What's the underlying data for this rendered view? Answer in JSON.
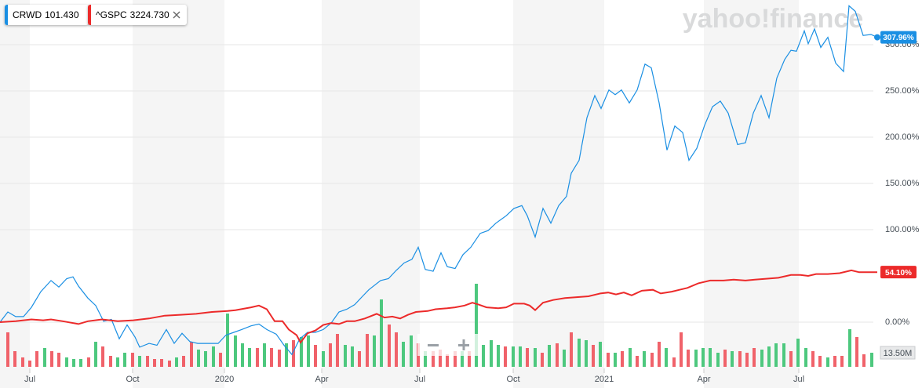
{
  "chart_data": {
    "type": "line",
    "watermark": "yahoo!finance",
    "xlim": [
      0,
      112
    ],
    "xticks": [
      {
        "value": 3.8,
        "label": "Jul"
      },
      {
        "value": 16.9,
        "label": "Oct"
      },
      {
        "value": 28.6,
        "label": "2020"
      },
      {
        "value": 41.0,
        "label": "Apr"
      },
      {
        "value": 53.5,
        "label": "Jul"
      },
      {
        "value": 65.4,
        "label": "Oct"
      },
      {
        "value": 77.0,
        "label": "2021"
      },
      {
        "value": 89.7,
        "label": "Apr"
      },
      {
        "value": 101.8,
        "label": "Jul"
      }
    ],
    "ylim": [
      -48.3,
      348.3
    ],
    "yticks": [
      {
        "value": 0,
        "label": "0.00%"
      },
      {
        "value": 100,
        "label": "100.00%"
      },
      {
        "value": 150,
        "label": "150.00%"
      },
      {
        "value": 200,
        "label": "200.00%"
      },
      {
        "value": 250,
        "label": "250.00%"
      },
      {
        "value": 300,
        "label": "300.00%"
      }
    ],
    "y2lim": [
      0,
      84
    ],
    "y2ticks": [
      {
        "value": 13.5,
        "label": "13.50M"
      }
    ],
    "grid": true,
    "series": [
      {
        "name": "CRWD",
        "quote": "101.430",
        "color": "#1a8fe3",
        "last_value": 307.96,
        "last_label": "307.96%",
        "x": [
          0,
          1,
          2,
          3,
          4,
          5.2,
          6.5,
          7.5,
          8.5,
          9.3,
          10,
          11.2,
          12.2,
          13.2,
          14.2,
          15.2,
          16.2,
          17.2,
          17.8,
          19,
          20,
          21.2,
          22.2,
          23.2,
          24.2,
          25.2,
          26.5,
          27.8,
          28.8,
          29.8,
          30.8,
          32,
          33,
          34,
          35.2,
          36.2,
          37.2,
          38.2,
          39.2,
          40.2,
          41.2,
          42.2,
          43.2,
          44.2,
          45.2,
          46.2,
          47,
          48.5,
          49.5,
          50.5,
          51.5,
          52.5,
          53.3,
          54.2,
          55.2,
          56.2,
          57,
          58,
          59,
          60,
          61.2,
          62.2,
          63.2,
          64.5,
          65.5,
          66.5,
          67.2,
          68.2,
          69.2,
          70.2,
          71.2,
          72.2,
          72.8,
          73.8,
          74.8,
          75.8,
          76.6,
          77.6,
          78.4,
          79.2,
          80.2,
          81.2,
          82.2,
          83,
          84,
          85,
          86,
          87,
          87.8,
          88.8,
          89.8,
          90.8,
          91.8,
          92.8,
          94,
          95,
          96,
          97,
          98,
          99,
          100,
          100.8,
          101.5,
          102.5,
          103,
          103.8,
          104.6,
          105.5,
          106.5,
          107.5,
          108.2,
          109,
          110,
          111,
          111.8
        ],
        "values": [
          0,
          11,
          6,
          6,
          16,
          33,
          45,
          38,
          47,
          49,
          39,
          26,
          18,
          1,
          3,
          -18,
          -3,
          -16,
          -27,
          -23,
          -25,
          -8,
          -23,
          -12,
          -21,
          -23,
          -23,
          -23,
          -14,
          -11,
          -8,
          -4,
          -2,
          -8,
          -13,
          -25,
          -35,
          -18,
          -11,
          -11,
          -8,
          -1,
          11,
          14,
          19,
          28,
          35,
          45,
          47,
          56,
          64,
          68,
          81,
          57,
          55,
          75,
          60,
          58,
          73,
          81,
          96,
          99,
          107,
          115,
          123,
          126,
          115,
          92,
          123,
          107,
          126,
          136,
          161,
          175,
          221,
          245,
          231,
          251,
          246,
          251,
          237,
          251,
          279,
          275,
          237,
          186,
          212,
          205,
          175,
          188,
          213,
          233,
          239,
          226,
          192,
          194,
          226,
          245,
          221,
          264,
          284,
          294,
          293,
          315,
          301,
          317,
          297,
          308,
          280,
          271,
          342,
          336,
          310,
          311,
          307.96
        ]
      },
      {
        "name": "^GSPC",
        "quote": "3224.730",
        "color": "#ec2a2a",
        "last_value": 54.1,
        "last_label": "54.10%",
        "x": [
          0,
          2,
          4,
          5.5,
          6.5,
          8,
          10,
          11.2,
          13,
          15,
          17,
          19,
          21,
          23,
          25,
          27,
          29,
          30,
          32,
          33,
          34,
          35,
          36,
          36.8,
          37.8,
          38.3,
          39.2,
          40.2,
          41.2,
          42.2,
          43.2,
          44.2,
          45.2,
          46.5,
          48,
          49,
          50,
          51,
          52,
          53,
          54.5,
          55.5,
          57,
          58,
          59.2,
          60.2,
          61,
          62,
          63.5,
          64.5,
          65.5,
          66.8,
          67.5,
          68.2,
          69.2,
          70.5,
          72,
          73.5,
          75,
          76.5,
          77.5,
          78.5,
          79.5,
          80.5,
          81.8,
          83.2,
          84.2,
          85.6,
          86.6,
          87.6,
          89,
          90.5,
          92.2,
          93.5,
          95,
          96.2,
          97.8,
          99.2,
          100.8,
          102,
          103,
          104,
          105.5,
          107,
          108.5,
          109.5,
          110.5,
          111.8
        ],
        "values": [
          0,
          1,
          3,
          2,
          3,
          1,
          -2,
          1,
          3,
          1,
          2,
          4,
          7,
          8,
          9,
          11,
          12,
          13,
          16,
          18,
          14,
          1,
          1,
          -8,
          -14,
          -22,
          -12,
          -9,
          -3,
          -1,
          -2,
          1,
          1,
          4,
          9,
          5,
          6,
          4,
          8,
          11,
          12,
          14,
          15,
          16,
          18,
          21,
          19,
          16,
          15,
          16,
          20,
          20,
          18,
          13,
          21,
          24,
          26,
          27,
          28,
          31,
          32,
          30,
          32,
          29,
          34,
          35,
          31,
          33,
          35,
          37,
          42,
          45,
          45,
          46,
          45,
          46,
          47,
          48,
          51,
          51,
          50,
          52,
          52,
          53,
          56,
          54,
          54,
          54.1
        ]
      },
      {
        "name": "Volume",
        "axis": "y2",
        "x": [
          1,
          1.9,
          2.9,
          3.8,
          4.7,
          5.7,
          6.6,
          7.5,
          8.5,
          9.4,
          10.3,
          11.3,
          12.2,
          13.1,
          14.1,
          15,
          15.9,
          16.9,
          17.8,
          18.8,
          19.7,
          20.6,
          21.6,
          22.5,
          23.4,
          24.4,
          25.3,
          26.2,
          27.2,
          28.1,
          29,
          30,
          30.9,
          31.8,
          32.8,
          33.7,
          34.6,
          35.6,
          36.5,
          37.4,
          38.4,
          39.3,
          40.2,
          41.2,
          42.1,
          43,
          44,
          44.9,
          45.8,
          46.8,
          47.7,
          48.6,
          49.6,
          50.5,
          51.4,
          52.4,
          53.3,
          54.2,
          55.2,
          56.1,
          57,
          58,
          58.9,
          59.8,
          60.7,
          61.6,
          62.6,
          63.5,
          64.4,
          65.4,
          66.3,
          67.2,
          68.2,
          69.1,
          70,
          71,
          71.9,
          72.8,
          73.8,
          74.7,
          75.6,
          76.5,
          77.5,
          78.4,
          79.3,
          80.3,
          81.2,
          82.1,
          83.1,
          84,
          84.9,
          85.9,
          86.8,
          87.7,
          88.7,
          89.6,
          90.5,
          91.5,
          92.4,
          93.3,
          94.3,
          95.2,
          96.1,
          97.1,
          98,
          98.9,
          99.9,
          100.8,
          101.7,
          102.7,
          103.6,
          104.5,
          105.5,
          106.4,
          107.3,
          108.3,
          109.2,
          110.1,
          111.1
        ],
        "values": [
          33,
          15,
          9,
          6,
          15,
          18,
          15,
          13.5,
          9,
          7.5,
          7.5,
          9,
          24,
          19.5,
          10.5,
          9,
          13.5,
          13.5,
          10.5,
          10.5,
          7.5,
          7.5,
          6,
          9,
          10.5,
          24,
          16.5,
          15,
          19.5,
          13.5,
          51,
          30,
          22.5,
          18,
          18,
          22.5,
          18,
          16.5,
          22.5,
          25.5,
          28.5,
          30,
          21,
          15,
          22.5,
          31.5,
          21,
          19.5,
          15,
          31.5,
          30,
          64.5,
          40.5,
          33,
          24,
          30,
          22.5,
          15,
          15,
          16.5,
          12,
          15,
          15,
          15,
          79.5,
          21,
          25.5,
          21,
          19.5,
          19.5,
          19.5,
          18,
          18,
          13.5,
          21,
          22.5,
          16.5,
          33,
          27,
          25.5,
          21,
          24,
          13.5,
          13.5,
          15,
          18,
          10.5,
          15,
          13.5,
          24,
          18,
          9,
          33,
          16.5,
          16.5,
          18,
          18,
          13.5,
          16.5,
          15,
          15,
          13.5,
          18,
          16.5,
          19.5,
          22.5,
          22.5,
          15,
          27,
          18,
          15,
          10.5,
          9,
          10.5,
          10.5,
          36,
          28.5,
          12,
          13.5
        ],
        "colors": [
          "#f0626a",
          "#f0626a",
          "#f0626a",
          "#f0626a",
          "#f0626a",
          "#4dc87e",
          "#f0626a",
          "#f0626a",
          "#4dc87e",
          "#4dc87e",
          "#4dc87e",
          "#f0626a",
          "#4dc87e",
          "#f0626a",
          "#f0626a",
          "#4dc87e",
          "#4dc87e",
          "#f0626a",
          "#4dc87e",
          "#f0626a",
          "#f0626a",
          "#f0626a",
          "#f0626a",
          "#4dc87e",
          "#f0626a",
          "#f0626a",
          "#4dc87e",
          "#4dc87e",
          "#4dc87e",
          "#f0626a",
          "#4dc87e",
          "#4dc87e",
          "#4dc87e",
          "#4dc87e",
          "#f0626a",
          "#4dc87e",
          "#f0626a",
          "#f0626a",
          "#4dc87e",
          "#f0626a",
          "#4dc87e",
          "#4dc87e",
          "#f0626a",
          "#4dc87e",
          "#f0626a",
          "#f0626a",
          "#4dc87e",
          "#4dc87e",
          "#f0626a",
          "#f0626a",
          "#4dc87e",
          "#4dc87e",
          "#f0626a",
          "#f0626a",
          "#4dc87e",
          "#4dc87e",
          "#f0626a",
          "#4dc87e",
          "#f0626a",
          "#f0626a",
          "#f0626a",
          "#f0626a",
          "#4dc87e",
          "#f0626a",
          "#4dc87e",
          "#4dc87e",
          "#4dc87e",
          "#4dc87e",
          "#f0626a",
          "#4dc87e",
          "#4dc87e",
          "#f0626a",
          "#4dc87e",
          "#f0626a",
          "#4dc87e",
          "#f0626a",
          "#4dc87e",
          "#f0626a",
          "#4dc87e",
          "#4dc87e",
          "#f0626a",
          "#4dc87e",
          "#f0626a",
          "#4dc87e",
          "#f0626a",
          "#4dc87e",
          "#f0626a",
          "#4dc87e",
          "#f0626a",
          "#f0626a",
          "#4dc87e",
          "#f0626a",
          "#f0626a",
          "#f0626a",
          "#4dc87e",
          "#4dc87e",
          "#4dc87e",
          "#4dc87e",
          "#f0626a",
          "#4dc87e",
          "#f0626a",
          "#f0626a",
          "#f0626a",
          "#4dc87e",
          "#4dc87e",
          "#4dc87e",
          "#4dc87e",
          "#f0626a",
          "#4dc87e",
          "#4dc87e",
          "#f0626a",
          "#f0626a",
          "#4dc87e",
          "#f0626a",
          "#f0626a",
          "#4dc87e",
          "#f0626a",
          "#f0626a",
          "#4dc87e"
        ]
      }
    ]
  }
}
